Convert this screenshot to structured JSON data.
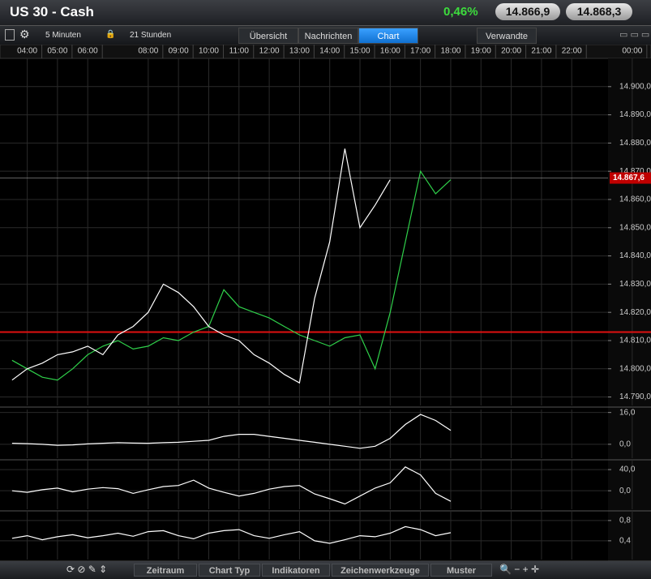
{
  "header": {
    "title": "US 30 - Cash",
    "change": "0,46%",
    "bid": "14.866,9",
    "ask": "14.868,3"
  },
  "toolbar": {
    "interval": "5 Minuten",
    "range": "21 Stunden",
    "tabs": [
      "Übersicht",
      "Nachrichten",
      "Chart"
    ],
    "related": "Verwandte"
  },
  "chart_data": [
    {
      "type": "line",
      "grid": true,
      "x": [
        3.5,
        4,
        4.5,
        5,
        5.5,
        6,
        6.5,
        7,
        7.5,
        8,
        8.5,
        9,
        9.5,
        10,
        10.5,
        11,
        11.5,
        12,
        12.5,
        13,
        13.5,
        14,
        14.5,
        15,
        15.5,
        16,
        16.5,
        17,
        17.5,
        18
      ],
      "xlim": [
        3.1,
        23.2
      ],
      "xticks": [
        {
          "value": 4,
          "label": "04:00"
        },
        {
          "value": 5,
          "label": "05:00"
        },
        {
          "value": 6,
          "label": "06:00"
        },
        {
          "value": 8,
          "label": "08:00"
        },
        {
          "value": 9,
          "label": "09:00"
        },
        {
          "value": 10,
          "label": "10:00"
        },
        {
          "value": 11,
          "label": "11:00"
        },
        {
          "value": 12,
          "label": "12:00"
        },
        {
          "value": 13,
          "label": "13:00"
        },
        {
          "value": 14,
          "label": "14:00"
        },
        {
          "value": 15,
          "label": "15:00"
        },
        {
          "value": 16,
          "label": "16:00"
        },
        {
          "value": 17,
          "label": "17:00"
        },
        {
          "value": 18,
          "label": "18:00"
        },
        {
          "value": 19,
          "label": "19:00"
        },
        {
          "value": 20,
          "label": "20:00"
        },
        {
          "value": 21,
          "label": "21:00"
        },
        {
          "value": 22,
          "label": "22:00"
        },
        {
          "value": 24,
          "label": "00:00"
        }
      ],
      "ylim": [
        14787,
        14910
      ],
      "yticks": [
        {
          "value": 14790,
          "label": "14.790,0"
        },
        {
          "value": 14800,
          "label": "14.800,0"
        },
        {
          "value": 14810,
          "label": "14.810,0"
        },
        {
          "value": 14820,
          "label": "14.820,0"
        },
        {
          "value": 14830,
          "label": "14.830,0"
        },
        {
          "value": 14840,
          "label": "14.840,0"
        },
        {
          "value": 14850,
          "label": "14.850,0"
        },
        {
          "value": 14860,
          "label": "14.860,0"
        },
        {
          "value": 14870,
          "label": "14.870,0"
        },
        {
          "value": 14880,
          "label": "14.880,0"
        },
        {
          "value": 14890,
          "label": "14.890,0"
        },
        {
          "value": 14900,
          "label": "14.900,0"
        }
      ],
      "last_price": {
        "value": 14867.6,
        "label": "14.867,6"
      },
      "ref_line": 14813,
      "series": [
        {
          "color": "#2fd04a",
          "values": [
            14803,
            14800,
            14797,
            14796,
            14800,
            14805,
            14808,
            14810,
            14807,
            14808,
            14811,
            14810,
            14813,
            14815,
            14828,
            14822,
            14820,
            14818,
            14815,
            14812,
            14810,
            14808,
            14811,
            14812,
            14800,
            14820,
            14845,
            14870,
            14862,
            14867
          ]
        },
        {
          "color": "#ffffff",
          "values": [
            14796,
            14800,
            14802,
            14805,
            14806,
            14808,
            14805,
            14812,
            14815,
            14820,
            14830,
            14827,
            14822,
            14815,
            14812,
            14810,
            14805,
            14802,
            14798,
            14795,
            14825,
            14845,
            14878,
            14850,
            14858,
            14867,
            null,
            null,
            null,
            null
          ]
        }
      ]
    },
    {
      "type": "line",
      "grid": true,
      "x": [
        3.5,
        4,
        4.5,
        5,
        5.5,
        6,
        6.5,
        7,
        7.5,
        8,
        8.5,
        9,
        9.5,
        10,
        10.5,
        11,
        11.5,
        12,
        12.5,
        13,
        13.5,
        14,
        14.5,
        15,
        15.5,
        16,
        16.5,
        17,
        17.5,
        18
      ],
      "xlim": [
        3.1,
        23.2
      ],
      "ylim": [
        -7,
        17.5
      ],
      "yticks": [
        {
          "value": 0,
          "label": "0,0"
        },
        {
          "value": 16,
          "label": "16,0"
        }
      ],
      "series": [
        {
          "color": "#ffffff",
          "values": [
            0.5,
            0.3,
            0,
            -0.5,
            -0.3,
            0.2,
            0.5,
            0.8,
            0.6,
            0.5,
            0.8,
            1,
            1.5,
            2,
            4,
            5,
            5,
            4,
            3,
            2,
            1,
            0,
            -1,
            -2,
            -1,
            3,
            10,
            15,
            12,
            7
          ]
        }
      ]
    },
    {
      "type": "line",
      "grid": true,
      "x": [
        3.5,
        4,
        4.5,
        5,
        5.5,
        6,
        6.5,
        7,
        7.5,
        8,
        8.5,
        9,
        9.5,
        10,
        10.5,
        11,
        11.5,
        12,
        12.5,
        13,
        13.5,
        14,
        14.5,
        15,
        15.5,
        16,
        16.5,
        17,
        17.5,
        18
      ],
      "xlim": [
        3.1,
        23.2
      ],
      "ylim": [
        -35,
        57
      ],
      "yticks": [
        {
          "value": 0,
          "label": "0,0"
        },
        {
          "value": 40,
          "label": "40,0"
        }
      ],
      "series": [
        {
          "color": "#ffffff",
          "values": [
            0,
            -3,
            2,
            5,
            -2,
            3,
            6,
            4,
            -5,
            2,
            8,
            10,
            20,
            5,
            -3,
            -10,
            -5,
            3,
            8,
            10,
            -6,
            -15,
            -25,
            -10,
            5,
            15,
            45,
            30,
            -5,
            -20
          ]
        }
      ]
    },
    {
      "type": "line",
      "grid": true,
      "x": [
        3.5,
        4,
        4.5,
        5,
        5.5,
        6,
        6.5,
        7,
        7.5,
        8,
        8.5,
        9,
        9.5,
        10,
        10.5,
        11,
        11.5,
        12,
        12.5,
        13,
        13.5,
        14,
        14.5,
        15,
        15.5,
        16,
        16.5,
        17,
        17.5,
        18
      ],
      "xlim": [
        3.1,
        23.2
      ],
      "ylim": [
        0.03,
        0.99
      ],
      "yticks": [
        {
          "value": 0.4,
          "label": "0,4"
        },
        {
          "value": 0.8,
          "label": "0,8"
        }
      ],
      "series": [
        {
          "color": "#ffffff",
          "values": [
            0.45,
            0.5,
            0.42,
            0.48,
            0.52,
            0.46,
            0.5,
            0.55,
            0.49,
            0.58,
            0.6,
            0.5,
            0.44,
            0.55,
            0.6,
            0.62,
            0.5,
            0.45,
            0.52,
            0.58,
            0.4,
            0.35,
            0.42,
            0.5,
            0.48,
            0.55,
            0.68,
            0.62,
            0.5,
            0.56
          ]
        }
      ]
    }
  ],
  "bottom_bar": {
    "buttons": [
      "Zeitraum",
      "Chart Typ",
      "Indikatoren",
      "Zeichenwerkzeuge",
      "Muster"
    ]
  }
}
